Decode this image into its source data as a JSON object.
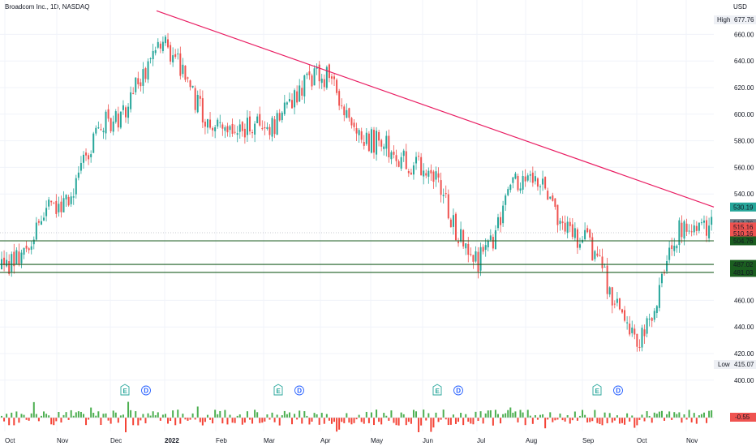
{
  "header": {
    "symbol": "Broadcom Inc., 1D, NASDAQ",
    "currency": "USD"
  },
  "colors": {
    "up": "#26a69a",
    "down": "#ef5350",
    "trendline": "#e91e63",
    "support": "#1b5e20",
    "vol_up": "#4caf50",
    "vol_down": "#f44336",
    "event": "#2962ff"
  },
  "price_axis": {
    "labels": [
      "660.00",
      "640.00",
      "620.00",
      "600.00",
      "580.00",
      "560.00",
      "540.00",
      "460.00",
      "440.00",
      "420.00",
      "400.00"
    ]
  },
  "time_axis": {
    "labels": [
      "Oct",
      "Nov",
      "Dec",
      "2022",
      "Feb",
      "Mar",
      "Apr",
      "May",
      "Jun",
      "Jul",
      "Aug",
      "Sep",
      "Oct",
      "Nov"
    ]
  },
  "markers": {
    "high": {
      "label": "High",
      "value": "677.76"
    },
    "low": {
      "label": "Low",
      "value": "415.07"
    },
    "tags": [
      {
        "value": "530.19",
        "color": "#26a69a"
      },
      {
        "value": "517.76",
        "color": "#787b86"
      },
      {
        "value": "515.16",
        "color": "#ef5350"
      },
      {
        "value": "510.16",
        "color": "#ef5350"
      },
      {
        "value": "504.76",
        "color": "#1b5e20"
      },
      {
        "value": "487.02",
        "color": "#1b5e20"
      },
      {
        "value": "481.03",
        "color": "#1b5e20"
      }
    ],
    "volume_tag": {
      "value": "-0.55",
      "color": "#ef5350"
    }
  },
  "events": [
    {
      "label": "E",
      "month": "Dec 2021"
    },
    {
      "label": "D",
      "month": "Dec 2021"
    },
    {
      "label": "E",
      "month": "Mar 2022"
    },
    {
      "label": "D",
      "month": "Mar 2022"
    },
    {
      "label": "E",
      "month": "Jun 2022"
    },
    {
      "label": "D",
      "month": "Jun 2022"
    },
    {
      "label": "E",
      "month": "Sep 2022"
    },
    {
      "label": "D",
      "month": "Sep 2022"
    }
  ],
  "chart_data": {
    "type": "line",
    "title": "Broadcom Inc., 1D, NASDAQ",
    "xlabel": "",
    "ylabel": "USD",
    "ylim": [
      400,
      680
    ],
    "grid": true,
    "categories": [
      "Oct 2021",
      "Nov 2021",
      "Dec 2021",
      "Jan 2022",
      "Feb 2022",
      "Mar 2022",
      "Apr 2022",
      "May 2022",
      "Jun 2022",
      "Jul 2022",
      "Aug 2022",
      "Sep 2022",
      "Oct 2022",
      "Nov 2022"
    ],
    "series": [
      {
        "values": [
          485,
          530,
          595,
          650,
          590,
          590,
          630,
          580,
          560,
          490,
          555,
          505,
          430,
          517
        ]
      }
    ],
    "trendline": {
      "from": [
        "Jan 2022",
        677.76
      ],
      "to": [
        "Nov 2022",
        530.19
      ]
    },
    "horizontal_levels": [
      504.76,
      487.02,
      481.03
    ],
    "high": 677.76,
    "low": 415.07
  }
}
